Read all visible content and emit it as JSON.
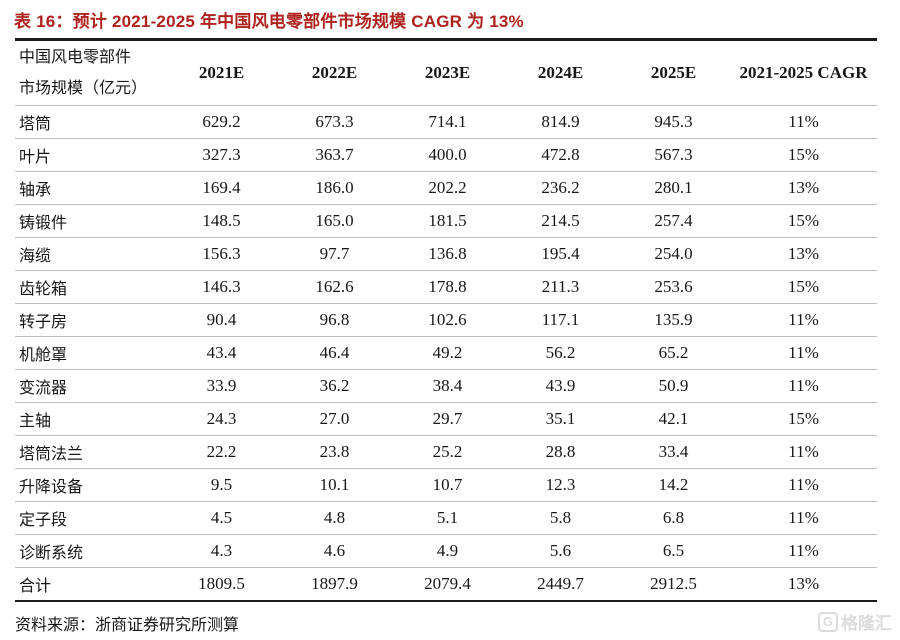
{
  "title": "表 16：预计 2021-2025 年中国风电零部件市场规模 CAGR 为 13%",
  "header": {
    "label_line1": "中国风电零部件",
    "label_line2": "市场规模（亿元）",
    "columns": [
      "2021E",
      "2022E",
      "2023E",
      "2024E",
      "2025E",
      "2021-2025 CAGR"
    ]
  },
  "table": {
    "rows": [
      {
        "label": "塔筒",
        "values": [
          "629.2",
          "673.3",
          "714.1",
          "814.9",
          "945.3"
        ],
        "cagr": "11%",
        "total": false
      },
      {
        "label": "叶片",
        "values": [
          "327.3",
          "363.7",
          "400.0",
          "472.8",
          "567.3"
        ],
        "cagr": "15%",
        "total": false
      },
      {
        "label": "轴承",
        "values": [
          "169.4",
          "186.0",
          "202.2",
          "236.2",
          "280.1"
        ],
        "cagr": "13%",
        "total": false
      },
      {
        "label": "铸锻件",
        "values": [
          "148.5",
          "165.0",
          "181.5",
          "214.5",
          "257.4"
        ],
        "cagr": "15%",
        "total": false
      },
      {
        "label": "海缆",
        "values": [
          "156.3",
          "97.7",
          "136.8",
          "195.4",
          "254.0"
        ],
        "cagr": "13%",
        "total": false
      },
      {
        "label": "齿轮箱",
        "values": [
          "146.3",
          "162.6",
          "178.8",
          "211.3",
          "253.6"
        ],
        "cagr": "15%",
        "total": false
      },
      {
        "label": "转子房",
        "values": [
          "90.4",
          "96.8",
          "102.6",
          "117.1",
          "135.9"
        ],
        "cagr": "11%",
        "total": false
      },
      {
        "label": "机舱罩",
        "values": [
          "43.4",
          "46.4",
          "49.2",
          "56.2",
          "65.2"
        ],
        "cagr": "11%",
        "total": false
      },
      {
        "label": "变流器",
        "values": [
          "33.9",
          "36.2",
          "38.4",
          "43.9",
          "50.9"
        ],
        "cagr": "11%",
        "total": false
      },
      {
        "label": "主轴",
        "values": [
          "24.3",
          "27.0",
          "29.7",
          "35.1",
          "42.1"
        ],
        "cagr": "15%",
        "total": false
      },
      {
        "label": "塔筒法兰",
        "values": [
          "22.2",
          "23.8",
          "25.2",
          "28.8",
          "33.4"
        ],
        "cagr": "11%",
        "total": false
      },
      {
        "label": "升降设备",
        "values": [
          "9.5",
          "10.1",
          "10.7",
          "12.3",
          "14.2"
        ],
        "cagr": "11%",
        "total": false
      },
      {
        "label": "定子段",
        "values": [
          "4.5",
          "4.8",
          "5.1",
          "5.8",
          "6.8"
        ],
        "cagr": "11%",
        "total": false
      },
      {
        "label": "诊断系统",
        "values": [
          "4.3",
          "4.6",
          "4.9",
          "5.6",
          "6.5"
        ],
        "cagr": "11%",
        "total": false
      },
      {
        "label": "合计",
        "values": [
          "1809.5",
          "1897.9",
          "2079.4",
          "2449.7",
          "2912.5"
        ],
        "cagr": "13%",
        "total": true
      }
    ]
  },
  "source": "资料来源：浙商证券研究所测算",
  "watermark": {
    "icon_letter": "G",
    "text": "格隆汇"
  },
  "colors": {
    "title_red": "#ae231e",
    "border_dark": "#1c1c1c",
    "row_line_gray": "#bcbcbc",
    "watermark_gray": "#dcdcdc"
  },
  "chart_data": {
    "type": "table",
    "title": "预计 2021-2025 年中国风电零部件市场规模 CAGR 为 13%",
    "unit": "亿元",
    "categories": [
      "2021E",
      "2022E",
      "2023E",
      "2024E",
      "2025E"
    ],
    "series": [
      {
        "name": "塔筒",
        "values": [
          629.2,
          673.3,
          714.1,
          814.9,
          945.3
        ],
        "cagr": "11%"
      },
      {
        "name": "叶片",
        "values": [
          327.3,
          363.7,
          400.0,
          472.8,
          567.3
        ],
        "cagr": "15%"
      },
      {
        "name": "轴承",
        "values": [
          169.4,
          186.0,
          202.2,
          236.2,
          280.1
        ],
        "cagr": "13%"
      },
      {
        "name": "铸锻件",
        "values": [
          148.5,
          165.0,
          181.5,
          214.5,
          257.4
        ],
        "cagr": "15%"
      },
      {
        "name": "海缆",
        "values": [
          156.3,
          97.7,
          136.8,
          195.4,
          254.0
        ],
        "cagr": "13%"
      },
      {
        "name": "齿轮箱",
        "values": [
          146.3,
          162.6,
          178.8,
          211.3,
          253.6
        ],
        "cagr": "15%"
      },
      {
        "name": "转子房",
        "values": [
          90.4,
          96.8,
          102.6,
          117.1,
          135.9
        ],
        "cagr": "11%"
      },
      {
        "name": "机舱罩",
        "values": [
          43.4,
          46.4,
          49.2,
          56.2,
          65.2
        ],
        "cagr": "11%"
      },
      {
        "name": "变流器",
        "values": [
          33.9,
          36.2,
          38.4,
          43.9,
          50.9
        ],
        "cagr": "11%"
      },
      {
        "name": "主轴",
        "values": [
          24.3,
          27.0,
          29.7,
          35.1,
          42.1
        ],
        "cagr": "15%"
      },
      {
        "name": "塔筒法兰",
        "values": [
          22.2,
          23.8,
          25.2,
          28.8,
          33.4
        ],
        "cagr": "11%"
      },
      {
        "name": "升降设备",
        "values": [
          9.5,
          10.1,
          10.7,
          12.3,
          14.2
        ],
        "cagr": "11%"
      },
      {
        "name": "定子段",
        "values": [
          4.5,
          4.8,
          5.1,
          5.8,
          6.8
        ],
        "cagr": "11%"
      },
      {
        "name": "诊断系统",
        "values": [
          4.3,
          4.6,
          4.9,
          5.6,
          6.5
        ],
        "cagr": "11%"
      },
      {
        "name": "合计",
        "values": [
          1809.5,
          1897.9,
          2079.4,
          2449.7,
          2912.5
        ],
        "cagr": "13%"
      }
    ]
  }
}
